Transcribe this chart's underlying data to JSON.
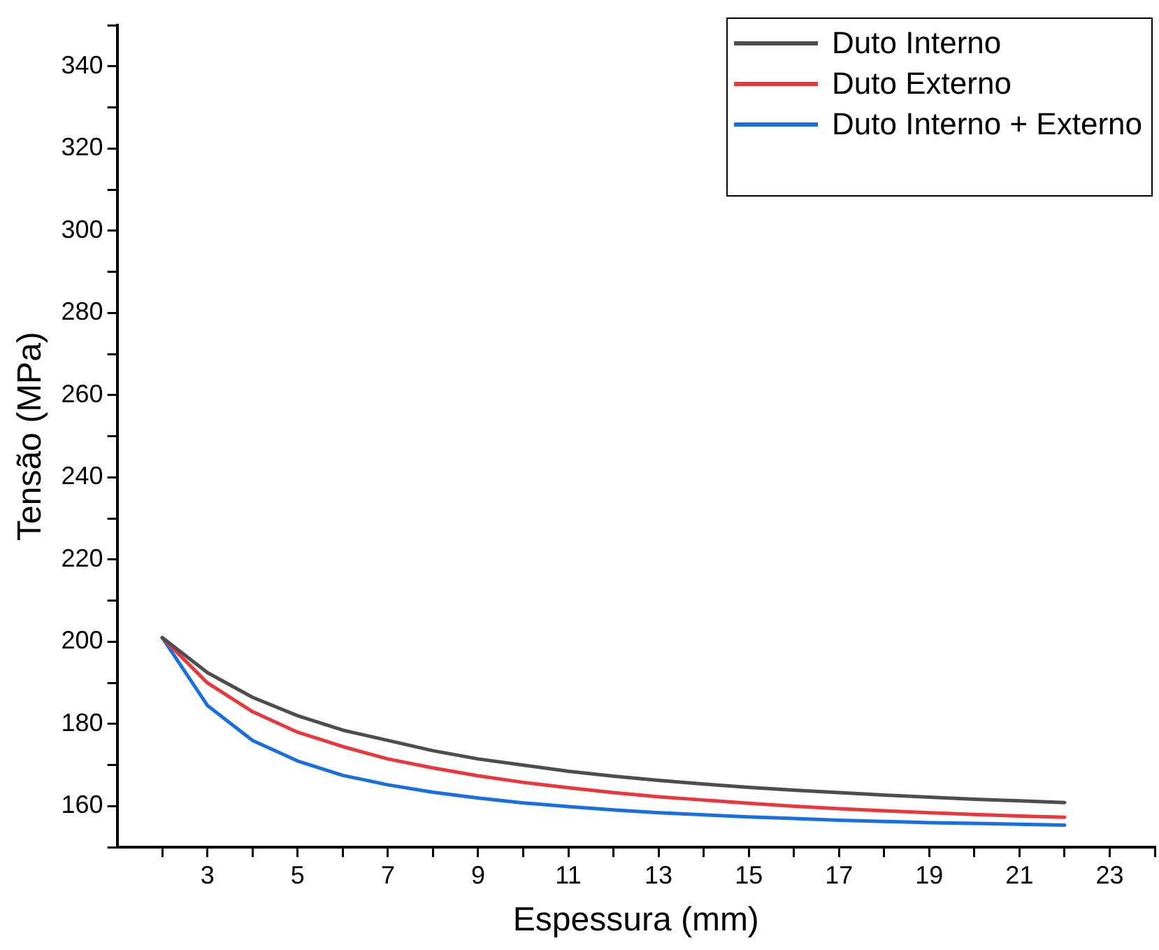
{
  "chart_data": {
    "type": "line",
    "xlabel": "Espessura (mm)",
    "ylabel": "Tensão (MPa)",
    "x": [
      2,
      3,
      4,
      5,
      6,
      7,
      8,
      9,
      10,
      11,
      12,
      13,
      14,
      15,
      16,
      17,
      18,
      19,
      20,
      21,
      22
    ],
    "series": [
      {
        "name": "Duto Interno",
        "color": "#4d4d4d",
        "values": [
          201,
          192.5,
          186.5,
          182,
          178.5,
          176,
          173.5,
          171.5,
          170,
          168.5,
          167.3,
          166.3,
          165.4,
          164.6,
          163.9,
          163.3,
          162.7,
          162.2,
          161.7,
          161.3,
          160.9
        ]
      },
      {
        "name": "Duto Externo",
        "color": "#e8383d",
        "values": [
          201,
          190,
          183,
          178,
          174.5,
          171.5,
          169.3,
          167.4,
          165.8,
          164.5,
          163.3,
          162.3,
          161.5,
          160.7,
          160,
          159.4,
          158.9,
          158.4,
          158,
          157.6,
          157.3
        ]
      },
      {
        "name": "Duto Interno + Externo",
        "color": "#1a6fdf",
        "values": [
          201,
          184.5,
          176,
          171,
          167.5,
          165.2,
          163.4,
          162,
          160.8,
          159.9,
          159.1,
          158.4,
          157.9,
          157.4,
          157,
          156.6,
          156.3,
          156,
          155.8,
          155.6,
          155.4
        ]
      }
    ],
    "xlim": [
      1,
      24
    ],
    "xticks": [
      {
        "value": 2,
        "label": null
      },
      3,
      {
        "value": 4,
        "label": null
      },
      5,
      {
        "value": 6,
        "label": null
      },
      7,
      {
        "value": 8,
        "label": null
      },
      9,
      {
        "value": 10,
        "label": null
      },
      11,
      {
        "value": 12,
        "label": null
      },
      13,
      {
        "value": 14,
        "label": null
      },
      15,
      {
        "value": 16,
        "label": null
      },
      17,
      {
        "value": 18,
        "label": null
      },
      19,
      {
        "value": 20,
        "label": null
      },
      21,
      {
        "value": 22,
        "label": null
      },
      23,
      {
        "value": 24,
        "label": null
      }
    ],
    "ylim": [
      150,
      350
    ],
    "yticks": [
      {
        "value": 150,
        "label": null
      },
      160,
      {
        "value": 170,
        "label": null
      },
      180,
      {
        "value": 190,
        "label": null
      },
      200,
      {
        "value": 210,
        "label": null
      },
      220,
      {
        "value": 230,
        "label": null
      },
      240,
      {
        "value": 250,
        "label": null
      },
      260,
      {
        "value": 270,
        "label": null
      },
      280,
      {
        "value": 290,
        "label": null
      },
      300,
      {
        "value": 310,
        "label": null
      },
      320,
      {
        "value": 330,
        "label": null
      },
      340,
      {
        "value": 350,
        "label": null
      }
    ],
    "grid": false,
    "legend": "top right",
    "marker": "none",
    "line_style": "solid"
  }
}
